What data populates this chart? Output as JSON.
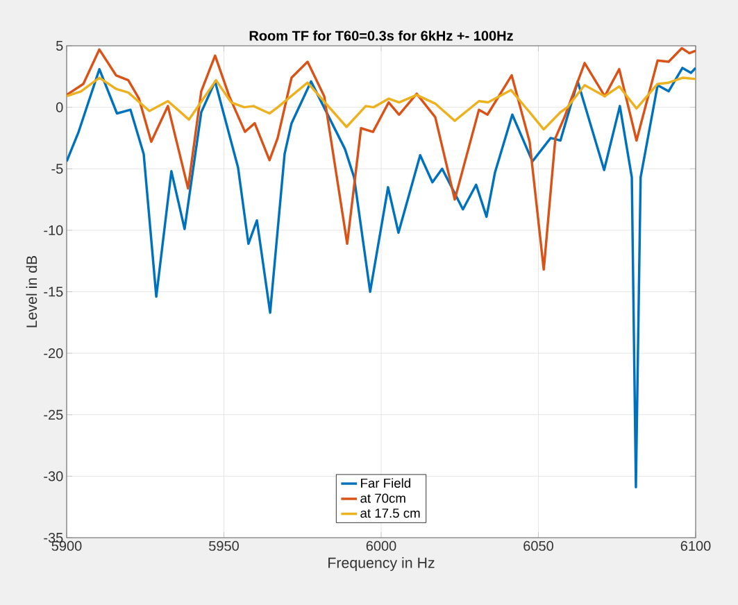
{
  "chart_data": {
    "type": "line",
    "title": "Room TF for T60=0.3s for 6kHz +- 100Hz",
    "xlabel": "Frequency in Hz",
    "ylabel": "Level in dB",
    "xlim": [
      5900,
      6100
    ],
    "xticks": [
      5900,
      5950,
      6000,
      6050,
      6100
    ],
    "ylim": [
      -35,
      5
    ],
    "yticks": [
      -35,
      -30,
      -25,
      -20,
      -15,
      -10,
      -5,
      0,
      5
    ],
    "grid": true,
    "legend": "bottom",
    "marker": "none",
    "line_style": "solid",
    "series": [
      {
        "name": "Far Field",
        "color": "#0072bd",
        "x": [
          5900,
          5903.8,
          5910.4,
          5916,
          5920.3,
          5924.5,
          5928.5,
          5933.3,
          5937.5,
          5942.8,
          5947.2,
          5954.5,
          5957.8,
          5960.5,
          5964.7,
          5969.3,
          5971.5,
          5977.7,
          5988.5,
          5991.4,
          5996.5,
          6002.2,
          6005.5,
          6012.4,
          6016.3,
          6019.4,
          6026,
          6030.2,
          6033.5,
          6036.2,
          6041.7,
          6048.1,
          6053.9,
          6057,
          6062.5,
          6070.9,
          6075.9,
          6079.7,
          6081,
          6082.5,
          6087.9,
          6091.4,
          6095.8,
          6098.5,
          6100
        ],
        "values": [
          -4.4,
          -2.0,
          3.1,
          -0.5,
          -0.2,
          -3.8,
          -15.4,
          -5.2,
          -9.9,
          -0.4,
          2.1,
          -4.9,
          -11.1,
          -9.2,
          -16.7,
          -3.8,
          -1.3,
          2.1,
          -3.4,
          -5.7,
          -15.0,
          -6.5,
          -10.2,
          -3.9,
          -6.1,
          -5.0,
          -8.3,
          -6.3,
          -8.9,
          -5.3,
          -0.6,
          -4.4,
          -2.5,
          -2.7,
          2.1,
          -5.1,
          0.1,
          -5.7,
          -30.9,
          -5.7,
          1.8,
          1.3,
          3.2,
          2.8,
          3.2
        ]
      },
      {
        "name": "at 70cm",
        "color": "#d95319",
        "x": [
          5900,
          5905.3,
          5910.4,
          5915.7,
          5919.6,
          5923,
          5926.9,
          5932.2,
          5938.6,
          5942.8,
          5947.2,
          5951.7,
          5956.7,
          5959.8,
          5964.5,
          5967.1,
          5971.5,
          5976.6,
          5981.9,
          5989.2,
          5993.6,
          5997.4,
          6002.4,
          6005.7,
          6011.3,
          6017.2,
          6023.4,
          6031.1,
          6033.8,
          6041.5,
          6047.2,
          6051.7,
          6055.4,
          6058.3,
          6064.7,
          6071.1,
          6075.7,
          6081.2,
          6087.9,
          6091.4,
          6095.6,
          6098,
          6100
        ],
        "values": [
          1.0,
          1.9,
          4.7,
          2.6,
          2.2,
          0.7,
          -2.8,
          0.1,
          -6.6,
          1.3,
          4.2,
          0.9,
          -2.0,
          -1.3,
          -4.3,
          -2.5,
          2.4,
          3.7,
          0.9,
          -11.1,
          -1.7,
          -2.0,
          0.4,
          -0.6,
          1.1,
          -0.8,
          -7.5,
          -0.2,
          -0.6,
          2.6,
          -2.8,
          -13.2,
          -2.5,
          -0.8,
          3.6,
          0.9,
          3.1,
          -2.7,
          3.8,
          3.7,
          4.8,
          4.4,
          4.6
        ]
      },
      {
        "name": "at 17.5 cm",
        "color": "#edb120",
        "x": [
          5900,
          5904.6,
          5910.4,
          5915.7,
          5919.6,
          5926.3,
          5932.2,
          5938.9,
          5947.5,
          5952.3,
          5956.5,
          5959.4,
          5964.5,
          5967.1,
          5976.6,
          5989,
          5995.1,
          5997.6,
          6002.4,
          6005.7,
          6011.3,
          6017.2,
          6023.4,
          6031.1,
          6034,
          6041.3,
          6047.2,
          6051.7,
          6057,
          6059.2,
          6064.7,
          6071.1,
          6075.7,
          6081.2,
          6087.9,
          6091.4,
          6095.8,
          6100
        ],
        "values": [
          0.9,
          1.3,
          2.4,
          1.5,
          1.2,
          -0.3,
          0.5,
          -1.0,
          2.2,
          0.4,
          0.0,
          0.1,
          -0.5,
          0.0,
          2.0,
          -1.6,
          0.1,
          0.0,
          0.7,
          0.4,
          1.0,
          0.3,
          -1.1,
          0.5,
          0.4,
          1.4,
          -0.4,
          -1.8,
          -0.4,
          0.0,
          1.8,
          0.9,
          1.7,
          -0.1,
          1.9,
          2.0,
          2.4,
          2.3
        ]
      }
    ]
  }
}
